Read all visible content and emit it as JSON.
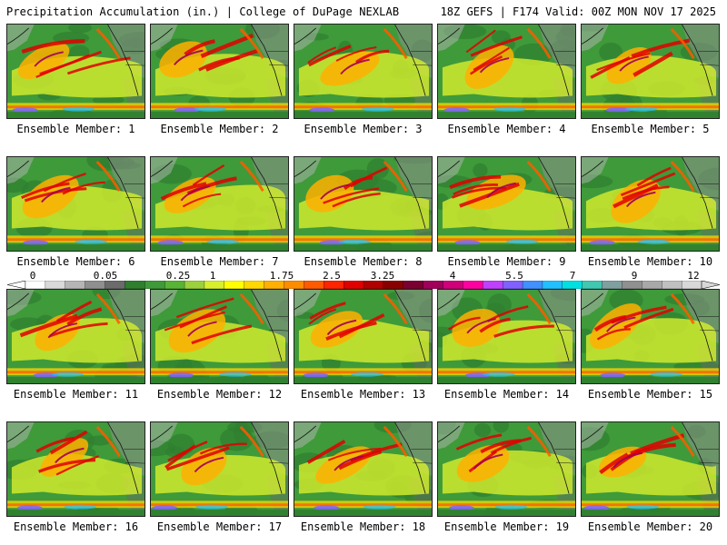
{
  "header": {
    "title_left": "Precipitation Accumulation (in.) | College of DuPage NEXLAB",
    "title_right": "18Z GEFS | F174 Valid: 00Z MON NOV 17 2025"
  },
  "members": [
    {
      "label": "Ensemble Member: 1"
    },
    {
      "label": "Ensemble Member: 2"
    },
    {
      "label": "Ensemble Member: 3"
    },
    {
      "label": "Ensemble Member: 4"
    },
    {
      "label": "Ensemble Member: 5"
    },
    {
      "label": "Ensemble Member: 6"
    },
    {
      "label": "Ensemble Member: 7"
    },
    {
      "label": "Ensemble Member: 8"
    },
    {
      "label": "Ensemble Member: 9"
    },
    {
      "label": "Ensemble Member: 10"
    },
    {
      "label": "Ensemble Member: 11"
    },
    {
      "label": "Ensemble Member: 12"
    },
    {
      "label": "Ensemble Member: 13"
    },
    {
      "label": "Ensemble Member: 14"
    },
    {
      "label": "Ensemble Member: 15"
    },
    {
      "label": "Ensemble Member: 16"
    },
    {
      "label": "Ensemble Member: 17"
    },
    {
      "label": "Ensemble Member: 18"
    },
    {
      "label": "Ensemble Member: 19"
    },
    {
      "label": "Ensemble Member: 20"
    }
  ],
  "legend": {
    "labels": [
      "0",
      "0.05",
      "0.25",
      "1",
      "1.75",
      "2.5",
      "3.25",
      "4",
      "5.5",
      "7",
      "9",
      "12"
    ],
    "colors": [
      "#ffffff",
      "#d9d9d9",
      "#b5b5b5",
      "#8f8f8f",
      "#6b6b6b",
      "#2f7f2f",
      "#3f9a3a",
      "#58b434",
      "#9bd23c",
      "#d8ef2e",
      "#ffff00",
      "#ffd800",
      "#ffb000",
      "#ff8c00",
      "#ff5a00",
      "#ff2400",
      "#e00000",
      "#b00000",
      "#8a0000",
      "#7a0030",
      "#a0005a",
      "#d0007a",
      "#ff00a0",
      "#c040ff",
      "#8060ff",
      "#4090ff",
      "#20c0ff",
      "#00e0e0",
      "#40c8b0",
      "#80a0a0",
      "#909090",
      "#a8a8a8",
      "#c0c0c0",
      "#d8d8d8"
    ]
  }
}
